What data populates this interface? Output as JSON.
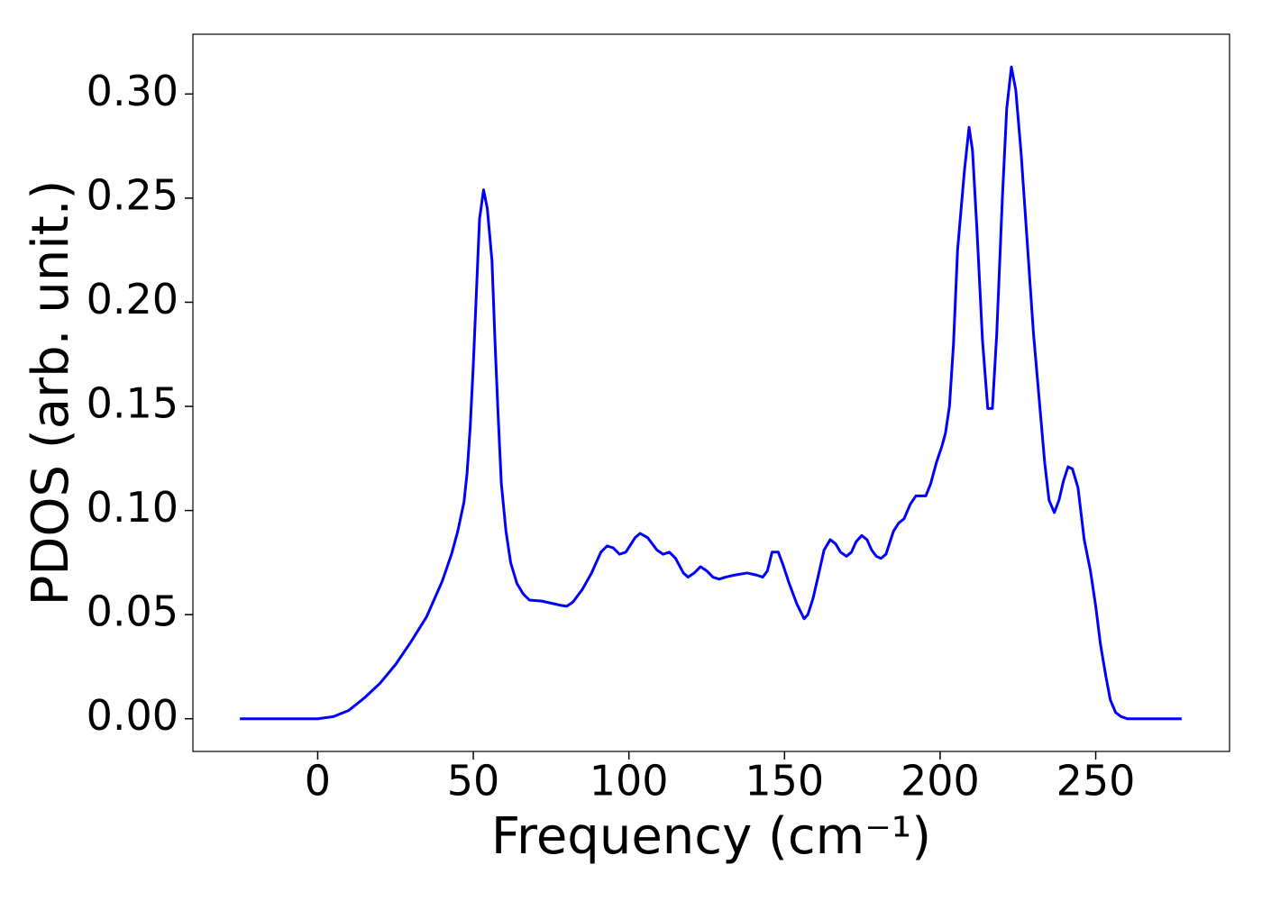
{
  "chart_data": {
    "type": "line",
    "xlabel": "Frequency (cm⁻¹)",
    "ylabel": "PDOS (arb. unit.)",
    "xlim": [
      -40.1,
      293.0
    ],
    "ylim": [
      -0.0157,
      0.3287
    ],
    "xticks": [
      0,
      50,
      100,
      150,
      200,
      250
    ],
    "yticks": [
      {
        "value": 0,
        "label": "0.00"
      },
      {
        "value": 0.05,
        "label": "0.05"
      },
      {
        "value": 0.1,
        "label": "0.10"
      },
      {
        "value": 0.15,
        "label": "0.15"
      },
      {
        "value": 0.2,
        "label": "0.20"
      },
      {
        "value": 0.25,
        "label": "0.25"
      },
      {
        "value": 0.3,
        "label": "0.30"
      }
    ],
    "x": [
      -25,
      0,
      5,
      10,
      15,
      20,
      25,
      30,
      35,
      40,
      43,
      45,
      47,
      48,
      49,
      50,
      51,
      52,
      53.3,
      54.5,
      56,
      57,
      58,
      59,
      60.5,
      62,
      64,
      66,
      68,
      72,
      78,
      80,
      82,
      85,
      88,
      91,
      93,
      95,
      97,
      99,
      102,
      103.6,
      106,
      109,
      111,
      113,
      115,
      117.5,
      119,
      121,
      123,
      125,
      127,
      129,
      131,
      134,
      138,
      141,
      143,
      144.5,
      146,
      148,
      149.5,
      151.5,
      154,
      156.3,
      157.5,
      159.2,
      160.9,
      162.7,
      164.7,
      166.4,
      168,
      169.9,
      171.5,
      173,
      174.8,
      176.5,
      178,
      179.5,
      181,
      182.6,
      185,
      186.7,
      188.4,
      190.4,
      192.2,
      195.4,
      197,
      198.8,
      200.6,
      201.7,
      203,
      204.3,
      205.6,
      207.8,
      209.3,
      210.4,
      211.9,
      213.6,
      215.3,
      216.8,
      218.2,
      220,
      221.4,
      222.9,
      224.3,
      226,
      227.8,
      230,
      233.6,
      235,
      236.7,
      238.2,
      239.6,
      241.1,
      242.5,
      244.3,
      246.3,
      248.3,
      250,
      251.5,
      253.3,
      254.7,
      256.4,
      258.2,
      260.2,
      277.6
    ],
    "series": [
      {
        "color": "#0000ff",
        "values": [
          0,
          0,
          0.001,
          0.004,
          0.01,
          0.017,
          0.026,
          0.037,
          0.049,
          0.066,
          0.079,
          0.09,
          0.104,
          0.118,
          0.14,
          0.17,
          0.205,
          0.24,
          0.254,
          0.245,
          0.22,
          0.18,
          0.145,
          0.113,
          0.09,
          0.075,
          0.065,
          0.06,
          0.057,
          0.0565,
          0.0545,
          0.054,
          0.056,
          0.062,
          0.07,
          0.08,
          0.083,
          0.082,
          0.079,
          0.08,
          0.087,
          0.089,
          0.087,
          0.081,
          0.079,
          0.08,
          0.077,
          0.07,
          0.068,
          0.07,
          0.073,
          0.071,
          0.068,
          0.067,
          0.068,
          0.069,
          0.07,
          0.069,
          0.068,
          0.071,
          0.08,
          0.08,
          0.074,
          0.065,
          0.055,
          0.048,
          0.05,
          0.058,
          0.069,
          0.081,
          0.086,
          0.084,
          0.08,
          0.078,
          0.08,
          0.085,
          0.088,
          0.086,
          0.081,
          0.078,
          0.077,
          0.079,
          0.09,
          0.094,
          0.096,
          0.103,
          0.107,
          0.107,
          0.113,
          0.123,
          0.131,
          0.137,
          0.15,
          0.18,
          0.225,
          0.263,
          0.284,
          0.273,
          0.233,
          0.182,
          0.149,
          0.149,
          0.185,
          0.25,
          0.293,
          0.313,
          0.302,
          0.272,
          0.233,
          0.185,
          0.123,
          0.105,
          0.099,
          0.105,
          0.114,
          0.121,
          0.12,
          0.111,
          0.086,
          0.071,
          0.054,
          0.036,
          0.02,
          0.009,
          0.003,
          0.001,
          0,
          0
        ]
      }
    ]
  }
}
